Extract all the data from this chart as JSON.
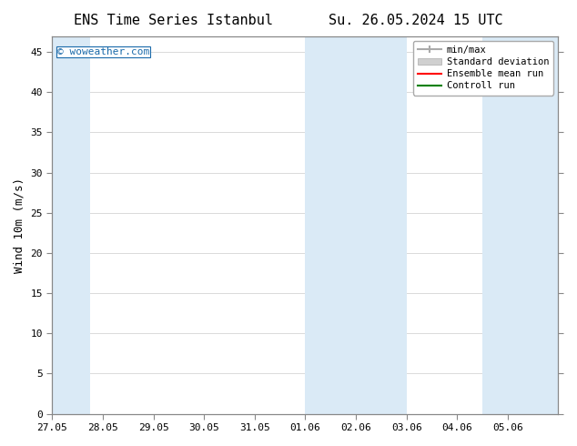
{
  "title_left": "ENS Time Series Istanbul",
  "title_right": "Su. 26.05.2024 15 UTC",
  "ylabel": "Wind 10m (m/s)",
  "watermark": "© woweather.com",
  "xlim_start": "2024-05-27",
  "xlim_end": "2024-06-06",
  "ylim": [
    0,
    47
  ],
  "yticks": [
    0,
    5,
    10,
    15,
    20,
    25,
    30,
    35,
    40,
    45
  ],
  "xtick_labels": [
    "27.05",
    "28.05",
    "29.05",
    "30.05",
    "31.05",
    "01.06",
    "02.06",
    "03.06",
    "04.06",
    "05.06"
  ],
  "shaded_regions": [
    {
      "start": "2024-05-27",
      "end": "2024-05-27 12:00",
      "color": "#d6e8f5"
    },
    {
      "start": "2024-06-01",
      "end": "2024-06-03",
      "color": "#d6e8f5"
    },
    {
      "start": "2024-06-04 12:00",
      "end": "2024-06-06",
      "color": "#d6e8f5"
    }
  ],
  "bg_color": "#ffffff",
  "plot_bg_color": "#ffffff",
  "legend_entries": [
    {
      "label": "min/max",
      "color": "#aaaaaa",
      "style": "minmax"
    },
    {
      "label": "Standard deviation",
      "color": "#cccccc",
      "style": "stddev"
    },
    {
      "label": "Ensemble mean run",
      "color": "#ff0000",
      "style": "line"
    },
    {
      "label": "Controll run",
      "color": "#008000",
      "style": "line"
    }
  ],
  "title_fontsize": 11,
  "axis_label_fontsize": 9,
  "tick_fontsize": 8,
  "watermark_color": "#1a6aaa",
  "font_family": "DejaVu Sans Mono"
}
